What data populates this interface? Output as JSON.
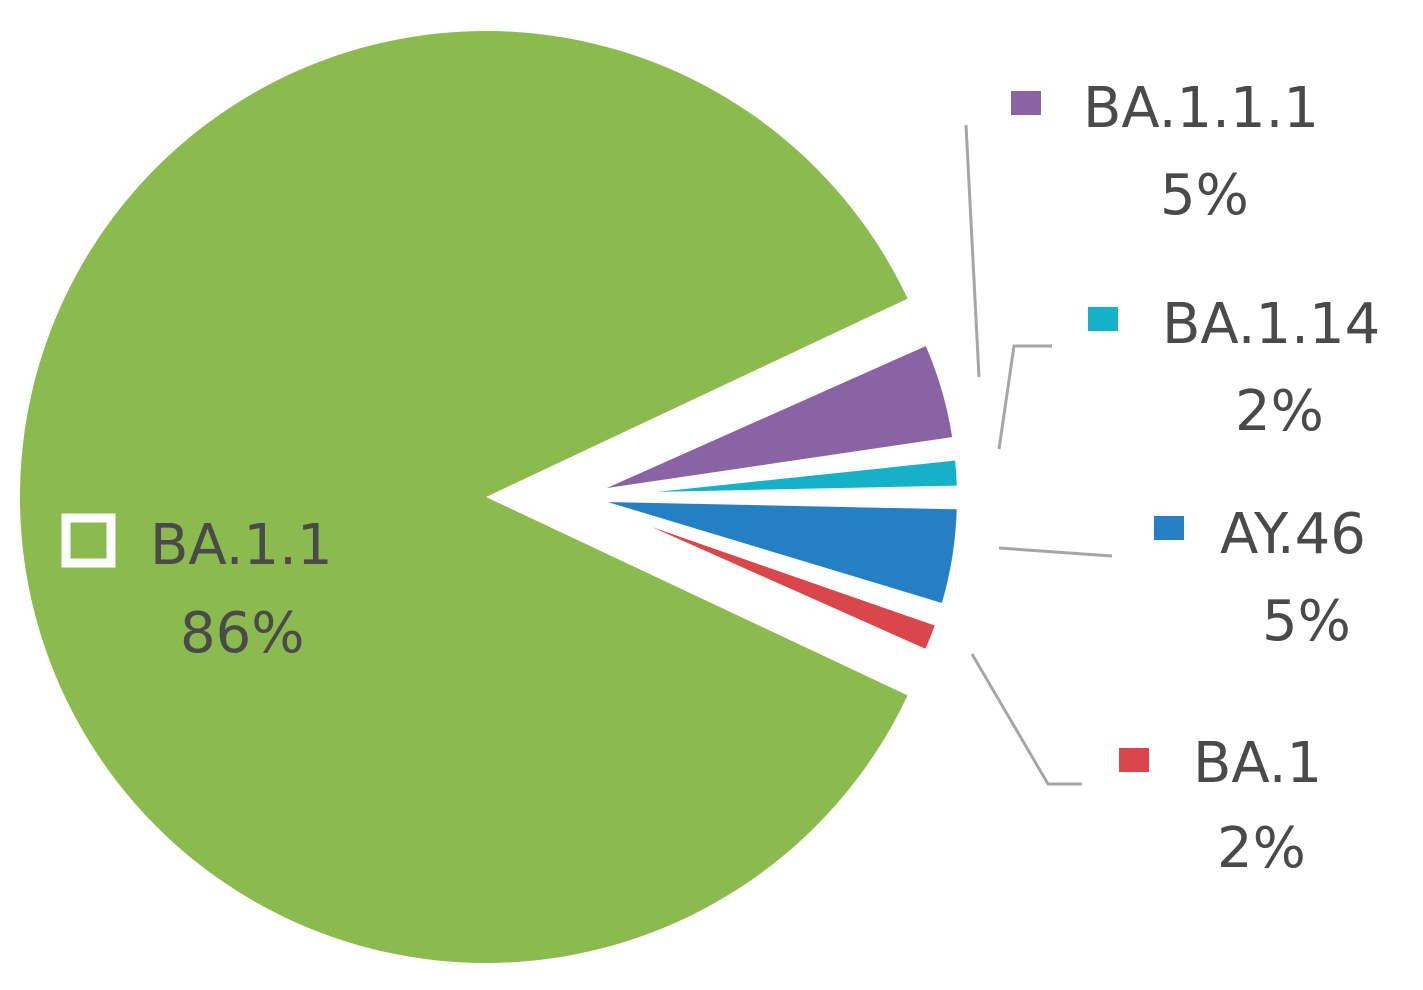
{
  "chart_data": {
    "type": "pie",
    "title": "",
    "slices": [
      {
        "name": "BA.1.1",
        "value": 86,
        "label": "86%",
        "color": "#8bba4f"
      },
      {
        "name": "BA.1.1.1",
        "value": 5,
        "label": "5%",
        "color": "#8a63a5"
      },
      {
        "name": "BA.1.14",
        "value": 2,
        "label": "2%",
        "color": "#14b1c9"
      },
      {
        "name": "AY.46",
        "value": 5,
        "label": "5%",
        "color": "#2480c2"
      },
      {
        "name": "BA.1",
        "value": 2,
        "label": "2%",
        "color": "#d9474a"
      }
    ],
    "legend": "data-labels",
    "exploded_slices": [
      "BA.1.1.1",
      "BA.1.14",
      "AY.46",
      "BA.1"
    ]
  }
}
